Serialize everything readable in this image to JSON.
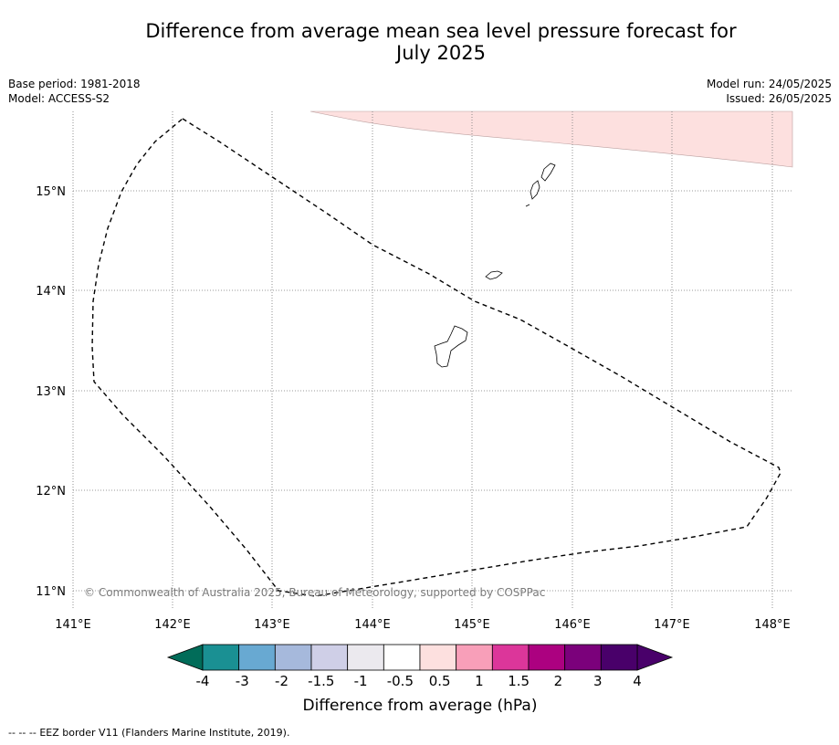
{
  "header": {
    "title_line1": "Difference from average mean sea level pressure forecast for",
    "title_line2": "July 2025",
    "base_period": "Base period: 1981-2018",
    "model": "Model: ACCESS-S2",
    "model_run": "Model run: 24/05/2025",
    "issued": "Issued: 26/05/2025"
  },
  "map": {
    "lon_ticks": [
      "141°E",
      "142°E",
      "143°E",
      "144°E",
      "145°E",
      "146°E",
      "147°E",
      "148°E"
    ],
    "lat_ticks": [
      "15°N",
      "14°N",
      "13°N",
      "12°N",
      "11°N"
    ],
    "copyright": "© Commonwealth of Australia 2025, Bureau of Meteorology, supported by COSPPac",
    "anomaly_fill_color": "#fde0df",
    "gridlines": true
  },
  "colorbar": {
    "labels": [
      "-4",
      "-3",
      "-2",
      "-1.5",
      "-1",
      "-0.5",
      "0.5",
      "1",
      "1.5",
      "2",
      "3",
      "4"
    ],
    "colors": [
      "#1a9093",
      "#68a9d2",
      "#a6b9dc",
      "#cfcfe7",
      "#ebe9ee",
      "#ffffff",
      "#fde0df",
      "#f89fb9",
      "#dc369a",
      "#ac0180",
      "#7b017b",
      "#49006a"
    ],
    "under_color": "#016c59",
    "title": "Difference from average (hPa)"
  },
  "footer": {
    "legend_symbol": "--  --  --",
    "legend_text": "EEZ border V11 (Flanders Marine Institute, 2019)."
  }
}
